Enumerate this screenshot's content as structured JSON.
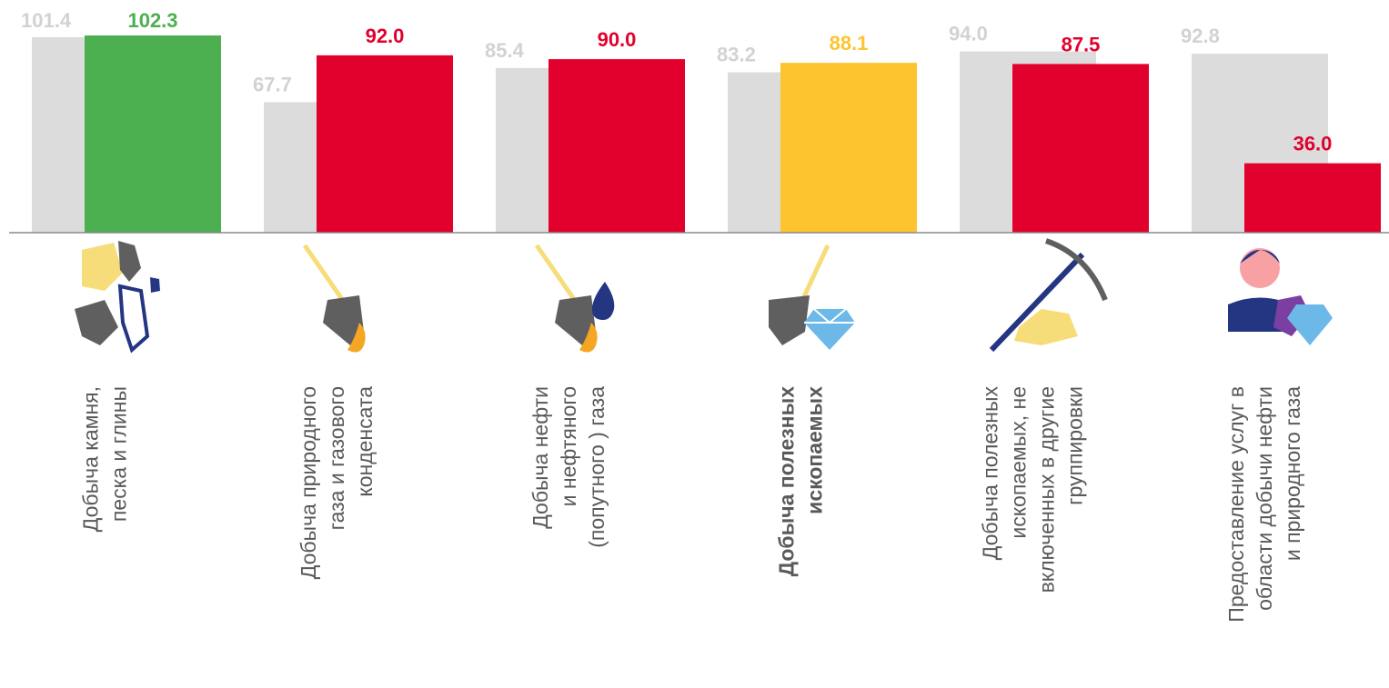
{
  "chart_data": {
    "type": "bar",
    "categories": [
      {
        "lines": [
          "Добыча камня,",
          "песка и глины"
        ],
        "bold": false,
        "icon": "stones-crystal-icon"
      },
      {
        "lines": [
          "Добыча  природного",
          "газа и газового",
          "конденсата"
        ],
        "bold": false,
        "icon": "shovel-flame-icon"
      },
      {
        "lines": [
          "Добыча нефти",
          "и нефтяного",
          "(попутного ) газа"
        ],
        "bold": false,
        "icon": "shovel-oil-drop-icon"
      },
      {
        "lines": [
          "Добыча полезных",
          "ископаемых"
        ],
        "bold": true,
        "icon": "shovel-diamond-icon"
      },
      {
        "lines": [
          "Добыча полезных",
          "ископаемых, не",
          "включенных в другие",
          "группировки"
        ],
        "bold": false,
        "icon": "pickaxe-gold-icon"
      },
      {
        "lines": [
          "Предоставление услуг в",
          "области добычи нефти",
          "и природного газа"
        ],
        "bold": false,
        "icon": "worker-gems-icon"
      }
    ],
    "series": [
      {
        "values": [
          101.4,
          67.7,
          85.4,
          83.2,
          94.0,
          92.8
        ],
        "labels": [
          "101.4",
          "67.7",
          "85.4",
          "83.2",
          "94.0",
          "92.8"
        ],
        "color": "#dcdcdc",
        "label_color": "#d2d2d2"
      },
      {
        "values": [
          102.3,
          92.0,
          90.0,
          88.1,
          87.5,
          36.0
        ],
        "labels": [
          "102.3",
          "92.0",
          "90.0",
          "88.1",
          "87.5",
          "36.0"
        ],
        "colors": [
          "#4caf50",
          "#e2002d",
          "#e2002d",
          "#fec42f",
          "#e2002d",
          "#e2002d"
        ]
      }
    ],
    "ylim": [
      0,
      102.3
    ],
    "grid": false,
    "legend": "none"
  }
}
